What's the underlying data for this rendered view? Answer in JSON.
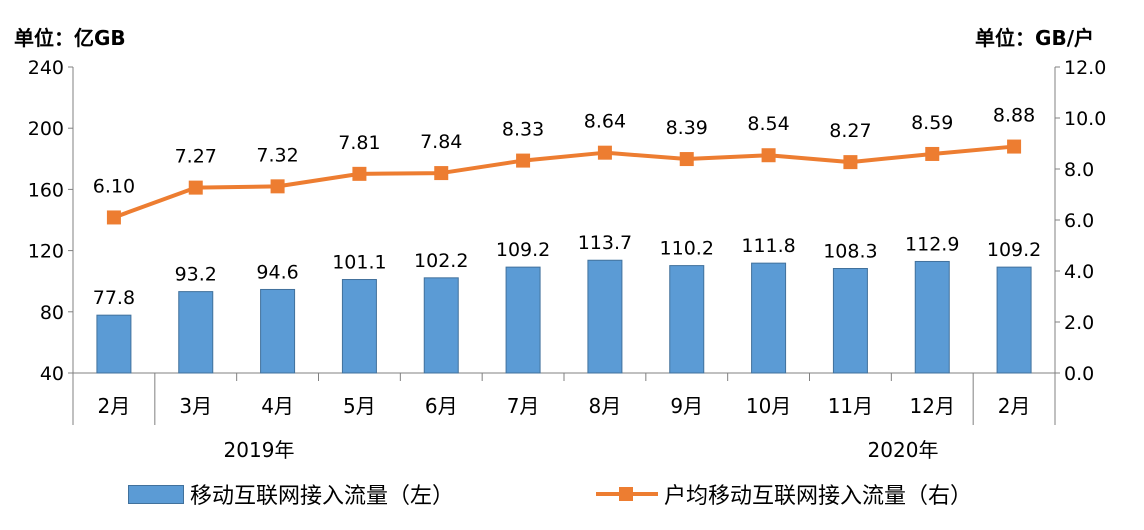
{
  "units": {
    "left": "单位：亿GB",
    "right": "单位：GB/户"
  },
  "years": [
    "2019年",
    "2020年"
  ],
  "chart_data": {
    "type": "bar+line",
    "categories": [
      "2月",
      "3月",
      "4月",
      "5月",
      "6月",
      "7月",
      "8月",
      "9月",
      "10月",
      "11月",
      "12月",
      "2月"
    ],
    "series": [
      {
        "name": "移动互联网接入流量（左）",
        "type": "bar",
        "axis": "left",
        "values": [
          77.8,
          93.2,
          94.6,
          101.1,
          102.2,
          109.2,
          113.7,
          110.2,
          111.8,
          108.3,
          112.9,
          109.2
        ],
        "labels": [
          "77.8",
          "93.2",
          "94.6",
          "101.1",
          "102.2",
          "109.2",
          "113.7",
          "110.2",
          "111.8",
          "108.3",
          "112.9",
          "109.2"
        ]
      },
      {
        "name": "户均移动互联网接入流量（右）",
        "type": "line",
        "axis": "right",
        "values": [
          6.1,
          7.27,
          7.32,
          7.81,
          7.84,
          8.33,
          8.64,
          8.39,
          8.54,
          8.27,
          8.59,
          8.88
        ],
        "labels": [
          "6.10",
          "7.27",
          "7.32",
          "7.81",
          "7.84",
          "8.33",
          "8.64",
          "8.39",
          "8.54",
          "8.27",
          "8.59",
          "8.88"
        ]
      }
    ],
    "ylim_left": [
      40,
      240
    ],
    "yticks_left": [
      "40",
      "80",
      "120",
      "160",
      "200",
      "240"
    ],
    "ylim_right": [
      0,
      12
    ],
    "yticks_right": [
      "0.0",
      "2.0",
      "4.0",
      "6.0",
      "8.0",
      "10.0",
      "12.0"
    ],
    "grid": false,
    "legend_position": "bottom",
    "colors": {
      "bar": "#5b9bd5",
      "bar_border": "#41719c",
      "line": "#ed7d31",
      "axis": "#808080"
    }
  }
}
